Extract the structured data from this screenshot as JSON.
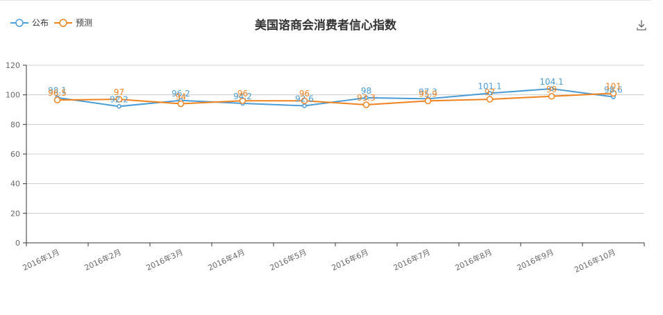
{
  "chart_data": {
    "type": "line",
    "title": "美国谘商会消费者信心指数",
    "categories": [
      "2016年1月",
      "2016年2月",
      "2016年3月",
      "2016年4月",
      "2016年5月",
      "2016年6月",
      "2016年7月",
      "2016年8月",
      "2016年9月",
      "2016年10月"
    ],
    "series": [
      {
        "name": "公布",
        "color": "#4a9cd6",
        "values": [
          98.1,
          92.2,
          96.2,
          94.2,
          92.6,
          98,
          97.3,
          101.1,
          104.1,
          98.6
        ],
        "labels": [
          "98.1",
          "92.2",
          "96.2",
          "94.2",
          "92.6",
          "98",
          "97.3",
          "101.1",
          "104.1",
          "98.6"
        ]
      },
      {
        "name": "预测",
        "color": "#f0821e",
        "values": [
          96.5,
          97,
          94,
          96,
          96,
          93.3,
          95.9,
          97,
          99,
          101
        ],
        "labels": [
          "96.5",
          "97",
          "94",
          "96",
          "96",
          "93.3",
          "95.9",
          "97",
          "99",
          "101"
        ]
      }
    ],
    "ylim": [
      0,
      120
    ],
    "yticks": [
      0,
      20,
      40,
      60,
      80,
      100,
      120
    ],
    "grid": true,
    "legend_position": "top-left"
  },
  "toolbar": {
    "download_icon": "download-icon"
  }
}
